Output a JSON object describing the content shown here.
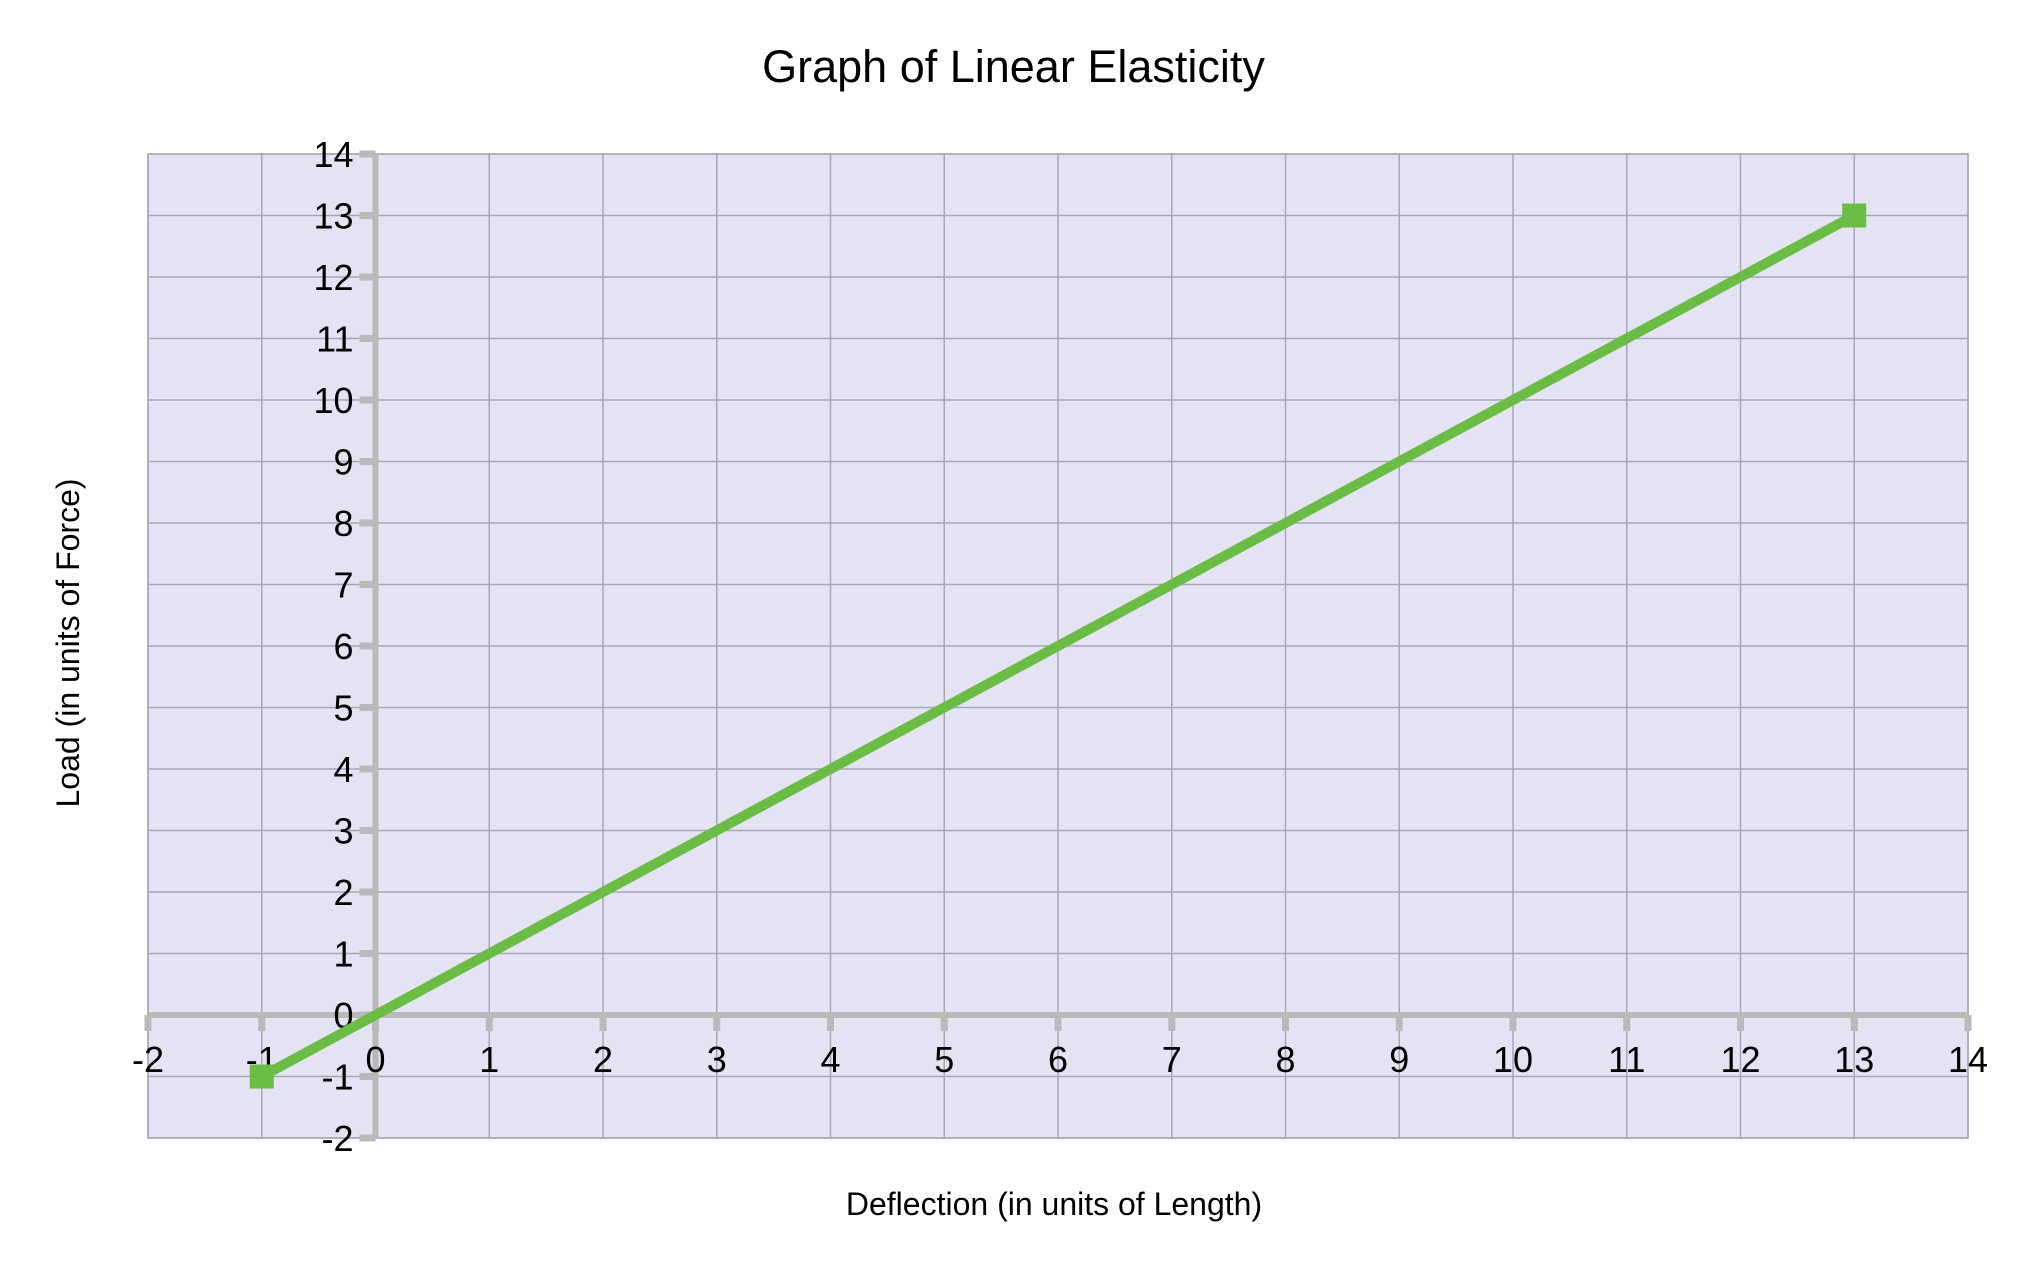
{
  "page": {
    "background": "#FFFFFF"
  },
  "chart_data": {
    "type": "line",
    "title": "Graph of Linear Elasticity",
    "xlabel": "Deflection (in units of Length)",
    "ylabel": "Load (in units of Force)",
    "xlim": [
      -2,
      14
    ],
    "ylim": [
      -2,
      14
    ],
    "x_ticks": [
      -2,
      -1,
      0,
      1,
      2,
      3,
      4,
      5,
      6,
      7,
      8,
      9,
      10,
      11,
      12,
      13,
      14
    ],
    "y_ticks": [
      -2,
      -1,
      0,
      1,
      2,
      3,
      4,
      5,
      6,
      7,
      8,
      9,
      10,
      11,
      12,
      13,
      14
    ],
    "grid": true,
    "legend": false,
    "series": [
      {
        "points": [
          [
            -1,
            -1
          ],
          [
            13,
            13
          ]
        ],
        "color": "#6ABC45",
        "marker": "square",
        "line_width": 10,
        "marker_size": 24
      }
    ],
    "style": {
      "wall_color": "#E3E3F3",
      "gridline_color": "#A6A6B6",
      "axis_color": "#B9B9B9",
      "tick_label_color": "#000000",
      "title_color": "#000000"
    }
  }
}
